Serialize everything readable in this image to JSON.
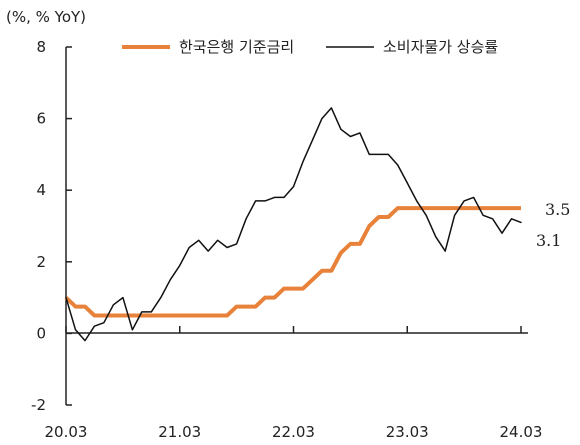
{
  "chart_data": {
    "type": "line",
    "ylabel": "(%, % YoY)",
    "ylim": [
      -2,
      8
    ],
    "yticks": [
      -2,
      0,
      2,
      4,
      6,
      8
    ],
    "xlim": [
      0,
      49
    ],
    "xticks": [
      {
        "label": "20.03",
        "x": 0
      },
      {
        "label": "21.03",
        "x": 12
      },
      {
        "label": "22.03",
        "x": 24
      },
      {
        "label": "23.03",
        "x": 36
      },
      {
        "label": "24.03",
        "x": 48
      }
    ],
    "grid": false,
    "legend_position": "top",
    "series": [
      {
        "name": "한국은행 기준금리",
        "color": "#E8823A",
        "end_label": "3.5",
        "x": [
          0,
          1,
          2,
          3,
          4,
          5,
          6,
          7,
          8,
          9,
          10,
          11,
          12,
          13,
          14,
          15,
          16,
          17,
          18,
          19,
          20,
          21,
          22,
          23,
          24,
          25,
          26,
          27,
          28,
          29,
          30,
          31,
          32,
          33,
          34,
          35,
          36,
          37,
          38,
          39,
          40,
          41,
          42,
          43,
          44,
          45,
          46,
          47,
          48
        ],
        "values": [
          1.0,
          0.75,
          0.75,
          0.5,
          0.5,
          0.5,
          0.5,
          0.5,
          0.5,
          0.5,
          0.5,
          0.5,
          0.5,
          0.5,
          0.5,
          0.5,
          0.5,
          0.5,
          0.75,
          0.75,
          0.75,
          1.0,
          1.0,
          1.25,
          1.25,
          1.25,
          1.5,
          1.75,
          1.75,
          2.25,
          2.5,
          2.5,
          3.0,
          3.25,
          3.25,
          3.5,
          3.5,
          3.5,
          3.5,
          3.5,
          3.5,
          3.5,
          3.5,
          3.5,
          3.5,
          3.5,
          3.5,
          3.5,
          3.5
        ]
      },
      {
        "name": "소비자물가 상승률",
        "color": "#111111",
        "end_label": "3.1",
        "x": [
          0,
          1,
          2,
          3,
          4,
          5,
          6,
          7,
          8,
          9,
          10,
          11,
          12,
          13,
          14,
          15,
          16,
          17,
          18,
          19,
          20,
          21,
          22,
          23,
          24,
          25,
          26,
          27,
          28,
          29,
          30,
          31,
          32,
          33,
          34,
          35,
          36,
          37,
          38,
          39,
          40,
          41,
          42,
          43,
          44,
          45,
          46,
          47,
          48
        ],
        "values": [
          1.0,
          0.1,
          -0.2,
          0.2,
          0.3,
          0.8,
          1.0,
          0.1,
          0.6,
          0.6,
          1.0,
          1.5,
          1.9,
          2.4,
          2.6,
          2.3,
          2.6,
          2.4,
          2.5,
          3.2,
          3.7,
          3.7,
          3.8,
          3.8,
          4.1,
          4.8,
          5.4,
          6.0,
          6.3,
          5.7,
          5.5,
          5.6,
          5.0,
          5.0,
          5.0,
          4.7,
          4.2,
          3.7,
          3.3,
          2.7,
          2.3,
          3.3,
          3.7,
          3.8,
          3.3,
          3.2,
          2.8,
          3.2,
          3.1
        ]
      }
    ]
  }
}
